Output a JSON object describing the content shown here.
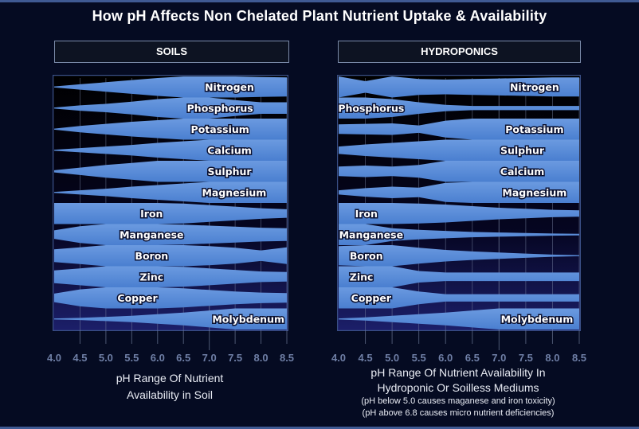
{
  "title": "How pH Affects Non Chelated Plant Nutrient Uptake & Availability",
  "colors": {
    "band": "#4a7fd0",
    "band_light": "#6b9ae0",
    "plot_bg_top": "#000000",
    "plot_bg_bottom": "#1c1f6a",
    "grid": "#7d8aa8",
    "tick_label": "#6f7fa6",
    "frame": "#3a4f86"
  },
  "panels": {
    "soils": {
      "label": "SOILS"
    },
    "hydro": {
      "label": "HYDROPONICS"
    }
  },
  "captions": {
    "soils": [
      "pH Range Of Nutrient",
      "Availability  in Soil"
    ],
    "hydro": [
      "pH Range Of Nutrient Availability In",
      "Hydroponic Or Soilless Mediums"
    ],
    "hydro_notes": [
      "(pH below 5.0 causes maganese and iron toxicity)",
      "(pH above 6.8 causes micro nutrient deficiencies)"
    ]
  },
  "chart_data": [
    {
      "type": "area",
      "title": "SOILS",
      "xlabel": "pH Range Of Nutrient Availability in Soil",
      "ylabel": "",
      "x_ticks": [
        "4.0",
        "4.5",
        "5.0",
        "5.5",
        "6.0",
        "6.5",
        "7.0",
        "7.5",
        "8.0",
        "8.5"
      ],
      "xlim": [
        4.0,
        8.5
      ],
      "grid": true,
      "note": "Each nutrient is a band; width = relative availability (0-1) at pH x",
      "x": [
        4.0,
        4.5,
        5.0,
        5.5,
        6.0,
        6.5,
        7.0,
        7.5,
        8.0,
        8.5
      ],
      "series": [
        {
          "name": "Nitrogen",
          "values": [
            0.05,
            0.25,
            0.45,
            0.65,
            0.85,
            1.0,
            1.0,
            1.0,
            0.95,
            0.9
          ]
        },
        {
          "name": "Phosphorus",
          "values": [
            0.05,
            0.25,
            0.4,
            0.6,
            0.85,
            1.0,
            1.0,
            0.75,
            0.55,
            0.55
          ]
        },
        {
          "name": "Potassium",
          "values": [
            0.05,
            0.3,
            0.5,
            0.7,
            0.85,
            1.0,
            1.0,
            1.0,
            1.0,
            1.0
          ]
        },
        {
          "name": "Calcium",
          "values": [
            0.05,
            0.2,
            0.35,
            0.5,
            0.7,
            0.85,
            1.0,
            1.0,
            1.0,
            1.0
          ]
        },
        {
          "name": "Sulphur",
          "values": [
            0.1,
            0.35,
            0.6,
            0.8,
            1.0,
            1.0,
            1.0,
            1.0,
            1.0,
            1.0
          ]
        },
        {
          "name": "Magnesium",
          "values": [
            0.05,
            0.2,
            0.35,
            0.55,
            0.7,
            0.85,
            1.0,
            1.0,
            1.0,
            1.0
          ]
        },
        {
          "name": "Iron",
          "values": [
            1.0,
            1.0,
            1.0,
            1.0,
            1.0,
            0.95,
            0.8,
            0.65,
            0.5,
            0.4
          ]
        },
        {
          "name": "Manganese",
          "values": [
            0.4,
            0.8,
            1.0,
            1.0,
            1.0,
            0.95,
            0.85,
            0.75,
            0.65,
            0.6
          ]
        },
        {
          "name": "Boron",
          "values": [
            0.6,
            0.8,
            1.0,
            1.0,
            1.0,
            1.0,
            0.9,
            0.75,
            0.5,
            0.8
          ]
        },
        {
          "name": "Zinc",
          "values": [
            0.6,
            0.8,
            1.0,
            1.0,
            1.0,
            0.95,
            0.8,
            0.65,
            0.5,
            0.45
          ]
        },
        {
          "name": "Copper",
          "values": [
            0.4,
            0.8,
            1.0,
            1.0,
            1.0,
            0.9,
            0.75,
            0.6,
            0.5,
            0.45
          ]
        },
        {
          "name": "Molybdenum",
          "values": [
            0.02,
            0.1,
            0.2,
            0.3,
            0.45,
            0.6,
            0.8,
            1.0,
            1.0,
            1.0
          ]
        }
      ]
    },
    {
      "type": "area",
      "title": "HYDROPONICS",
      "xlabel": "pH Range Of Nutrient Availability In Hydroponic Or Soilless Mediums",
      "ylabel": "",
      "x_ticks": [
        "4.0",
        "4.5",
        "5.0",
        "5.5",
        "6.0",
        "6.5",
        "7.0",
        "7.5",
        "8.0",
        "8.5"
      ],
      "xlim": [
        4.0,
        8.5
      ],
      "grid": true,
      "annotations": [
        "(pH below 5.0 causes maganese and iron toxicity)",
        "(pH above 6.8 causes micro nutrient deficiencies)"
      ],
      "x": [
        4.0,
        4.5,
        5.0,
        5.5,
        6.0,
        6.5,
        7.0,
        7.5,
        8.0,
        8.5
      ],
      "series": [
        {
          "name": "Nitrogen",
          "values": [
            1.0,
            0.55,
            1.0,
            0.75,
            0.7,
            0.75,
            0.8,
            0.85,
            0.9,
            0.9
          ]
        },
        {
          "name": "Phosphorus",
          "values": [
            1.0,
            1.0,
            0.85,
            0.55,
            0.3,
            0.2,
            0.2,
            0.2,
            0.2,
            0.2
          ]
        },
        {
          "name": "Potassium",
          "values": [
            0.45,
            0.5,
            0.55,
            0.35,
            0.8,
            1.0,
            1.0,
            1.0,
            1.0,
            1.0
          ]
        },
        {
          "name": "Sulphur",
          "values": [
            0.35,
            0.55,
            0.7,
            0.85,
            1.0,
            1.0,
            1.0,
            1.0,
            1.0,
            1.0
          ]
        },
        {
          "name": "Calcium",
          "values": [
            0.45,
            0.55,
            0.45,
            0.6,
            1.0,
            1.0,
            1.0,
            1.0,
            1.0,
            1.0
          ]
        },
        {
          "name": "Magnesium",
          "values": [
            0.2,
            0.4,
            0.55,
            0.45,
            0.9,
            1.0,
            1.0,
            1.0,
            1.0,
            1.0
          ]
        },
        {
          "name": "Iron",
          "values": [
            1.0,
            1.0,
            1.0,
            0.95,
            0.85,
            0.7,
            0.55,
            0.45,
            0.35,
            0.3
          ]
        },
        {
          "name": "Manganese",
          "values": [
            1.0,
            1.0,
            0.6,
            0.45,
            0.35,
            0.25,
            0.2,
            0.15,
            0.1,
            0.08
          ]
        },
        {
          "name": "Boron",
          "values": [
            0.9,
            1.0,
            1.0,
            0.75,
            0.55,
            0.4,
            0.3,
            0.2,
            0.1,
            0.05
          ]
        },
        {
          "name": "Zinc",
          "values": [
            1.0,
            1.0,
            1.0,
            0.55,
            0.4,
            0.4,
            0.4,
            0.4,
            0.4,
            0.4
          ]
        },
        {
          "name": "Copper",
          "values": [
            1.0,
            1.0,
            1.0,
            0.6,
            0.35,
            0.35,
            0.35,
            0.35,
            0.35,
            0.35
          ]
        },
        {
          "name": "Molybdenum",
          "values": [
            0.05,
            0.15,
            0.3,
            0.45,
            0.6,
            0.8,
            1.0,
            1.0,
            1.0,
            1.0
          ]
        }
      ]
    }
  ]
}
